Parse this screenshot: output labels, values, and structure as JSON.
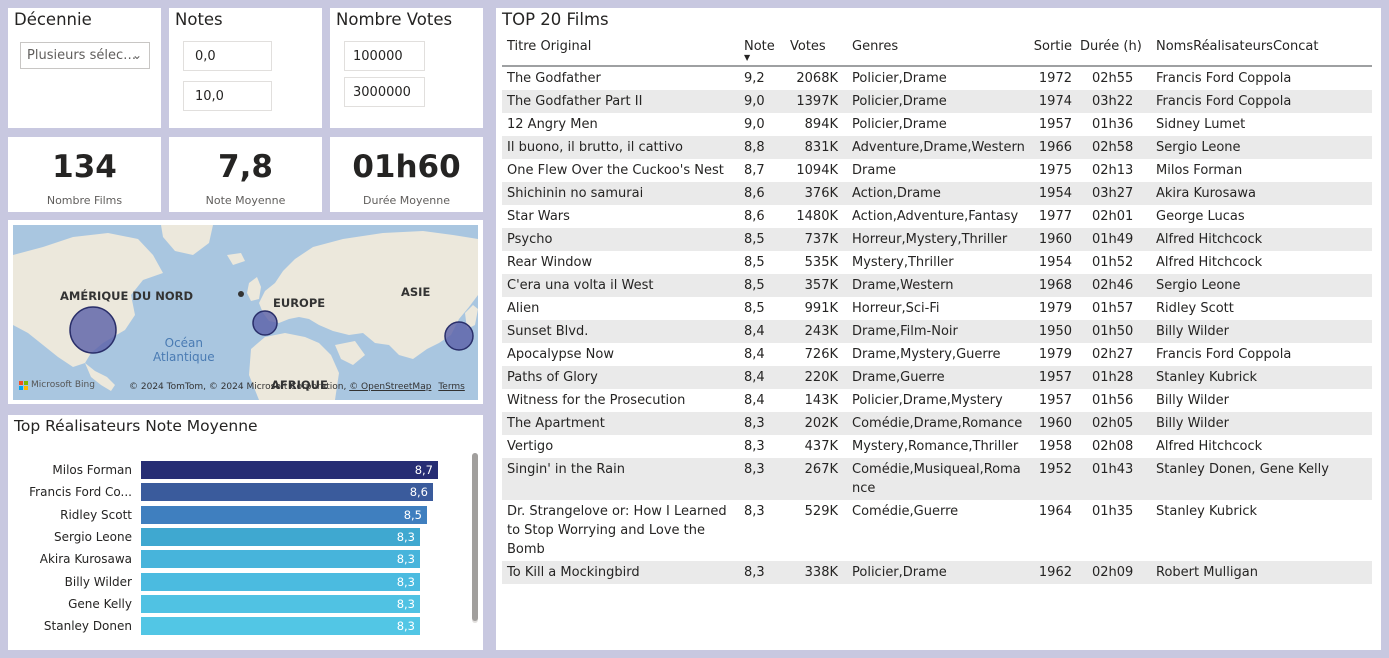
{
  "slicers": {
    "decennie": {
      "title": "Décennie",
      "value": "Plusieurs sélec…"
    },
    "notes": {
      "title": "Notes",
      "min": "0,0",
      "max": "10,0"
    },
    "votes": {
      "title": "Nombre Votes",
      "min": "100000",
      "max": "3000000"
    }
  },
  "kpis": [
    {
      "value": "134",
      "label": "Nombre Films"
    },
    {
      "value": "7,8",
      "label": "Note Moyenne"
    },
    {
      "value": "01h60",
      "label": "Durée Moyenne"
    }
  ],
  "map": {
    "regions": [
      "AMÉRIQUE DU NORD",
      "EUROPE",
      "ASIE",
      "AFRIQUE"
    ],
    "ocean": [
      "Océan",
      "Atlantique"
    ],
    "bing": "Microsoft Bing",
    "attribution": "© 2024 TomTom, © 2024 Microsoft Corporation,",
    "osm": "© OpenStreetMap",
    "terms": "Terms"
  },
  "bar_chart": {
    "title": "Top Réalisateurs Note Moyenne",
    "names": [
      "Milos Forman",
      "Francis Ford Co...",
      "Ridley Scott",
      "Sergio Leone",
      "Akira Kurosawa",
      "Billy Wilder",
      "Gene Kelly",
      "Stanley Donen"
    ],
    "labels": [
      "8,7",
      "8,6",
      "8,5",
      "8,3",
      "8,3",
      "8,3",
      "8,3",
      "8,3"
    ],
    "colors": [
      "#262d74",
      "#3a5b9c",
      "#3f7fbf",
      "#3fa8d0",
      "#47b4db",
      "#4bbbe0",
      "#50c2e3",
      "#52c6e5"
    ]
  },
  "chart_data": {
    "type": "bar",
    "title": "Top Réalisateurs Note Moyenne",
    "categories": [
      "Milos Forman",
      "Francis Ford Coppola",
      "Ridley Scott",
      "Sergio Leone",
      "Akira Kurosawa",
      "Billy Wilder",
      "Gene Kelly",
      "Stanley Donen"
    ],
    "values": [
      8.7,
      8.6,
      8.5,
      8.3,
      8.3,
      8.3,
      8.3,
      8.3
    ],
    "orientation": "horizontal"
  },
  "table": {
    "title": "TOP 20 Films",
    "sort_indicator": "▼",
    "headers": [
      "Titre Original",
      "Note",
      "Votes",
      "Genres",
      "Sortie",
      "Durée (h)",
      "NomsRéalisateursConcat"
    ],
    "rows": [
      [
        "The Godfather",
        "9,2",
        "2068K",
        "Policier,Drame",
        "1972",
        "02h55",
        "Francis Ford Coppola"
      ],
      [
        "The Godfather Part II",
        "9,0",
        "1397K",
        "Policier,Drame",
        "1974",
        "03h22",
        "Francis Ford Coppola"
      ],
      [
        "12 Angry Men",
        "9,0",
        "894K",
        "Policier,Drame",
        "1957",
        "01h36",
        "Sidney Lumet"
      ],
      [
        "Il buono, il brutto, il cattivo",
        "8,8",
        "831K",
        "Adventure,Drame,Western",
        "1966",
        "02h58",
        "Sergio Leone"
      ],
      [
        "One Flew Over the Cuckoo's Nest",
        "8,7",
        "1094K",
        "Drame",
        "1975",
        "02h13",
        "Milos Forman"
      ],
      [
        "Shichinin no samurai",
        "8,6",
        "376K",
        "Action,Drame",
        "1954",
        "03h27",
        "Akira Kurosawa"
      ],
      [
        "Star Wars",
        "8,6",
        "1480K",
        "Action,Adventure,Fantasy",
        "1977",
        "02h01",
        "George Lucas"
      ],
      [
        "Psycho",
        "8,5",
        "737K",
        "Horreur,Mystery,Thriller",
        "1960",
        "01h49",
        "Alfred Hitchcock"
      ],
      [
        "Rear Window",
        "8,5",
        "535K",
        "Mystery,Thriller",
        "1954",
        "01h52",
        "Alfred Hitchcock"
      ],
      [
        "C'era una volta il West",
        "8,5",
        "357K",
        "Drame,Western",
        "1968",
        "02h46",
        "Sergio Leone"
      ],
      [
        "Alien",
        "8,5",
        "991K",
        "Horreur,Sci-Fi",
        "1979",
        "01h57",
        "Ridley Scott"
      ],
      [
        "Sunset Blvd.",
        "8,4",
        "243K",
        "Drame,Film-Noir",
        "1950",
        "01h50",
        "Billy Wilder"
      ],
      [
        "Apocalypse Now",
        "8,4",
        "726K",
        "Drame,Mystery,Guerre",
        "1979",
        "02h27",
        "Francis Ford Coppola"
      ],
      [
        "Paths of Glory",
        "8,4",
        "220K",
        "Drame,Guerre",
        "1957",
        "01h28",
        "Stanley Kubrick"
      ],
      [
        "Witness for the Prosecution",
        "8,4",
        "143K",
        "Policier,Drame,Mystery",
        "1957",
        "01h56",
        "Billy Wilder"
      ],
      [
        "The Apartment",
        "8,3",
        "202K",
        "Comédie,Drame,Romance",
        "1960",
        "02h05",
        "Billy Wilder"
      ],
      [
        "Vertigo",
        "8,3",
        "437K",
        "Mystery,Romance,Thriller",
        "1958",
        "02h08",
        "Alfred Hitchcock"
      ],
      [
        "Singin' in the Rain",
        "8,3",
        "267K",
        "Comédie,Musiqueal,Romance",
        "1952",
        "01h43",
        "Stanley Donen, Gene Kelly"
      ],
      [
        "Dr. Strangelove or: How I Learned to Stop Worrying and Love the Bomb",
        "8,3",
        "529K",
        "Comédie,Guerre",
        "1964",
        "01h35",
        "Stanley Kubrick"
      ],
      [
        "To Kill a Mockingbird",
        "8,3",
        "338K",
        "Policier,Drame",
        "1962",
        "02h09",
        "Robert Mulligan"
      ]
    ]
  }
}
